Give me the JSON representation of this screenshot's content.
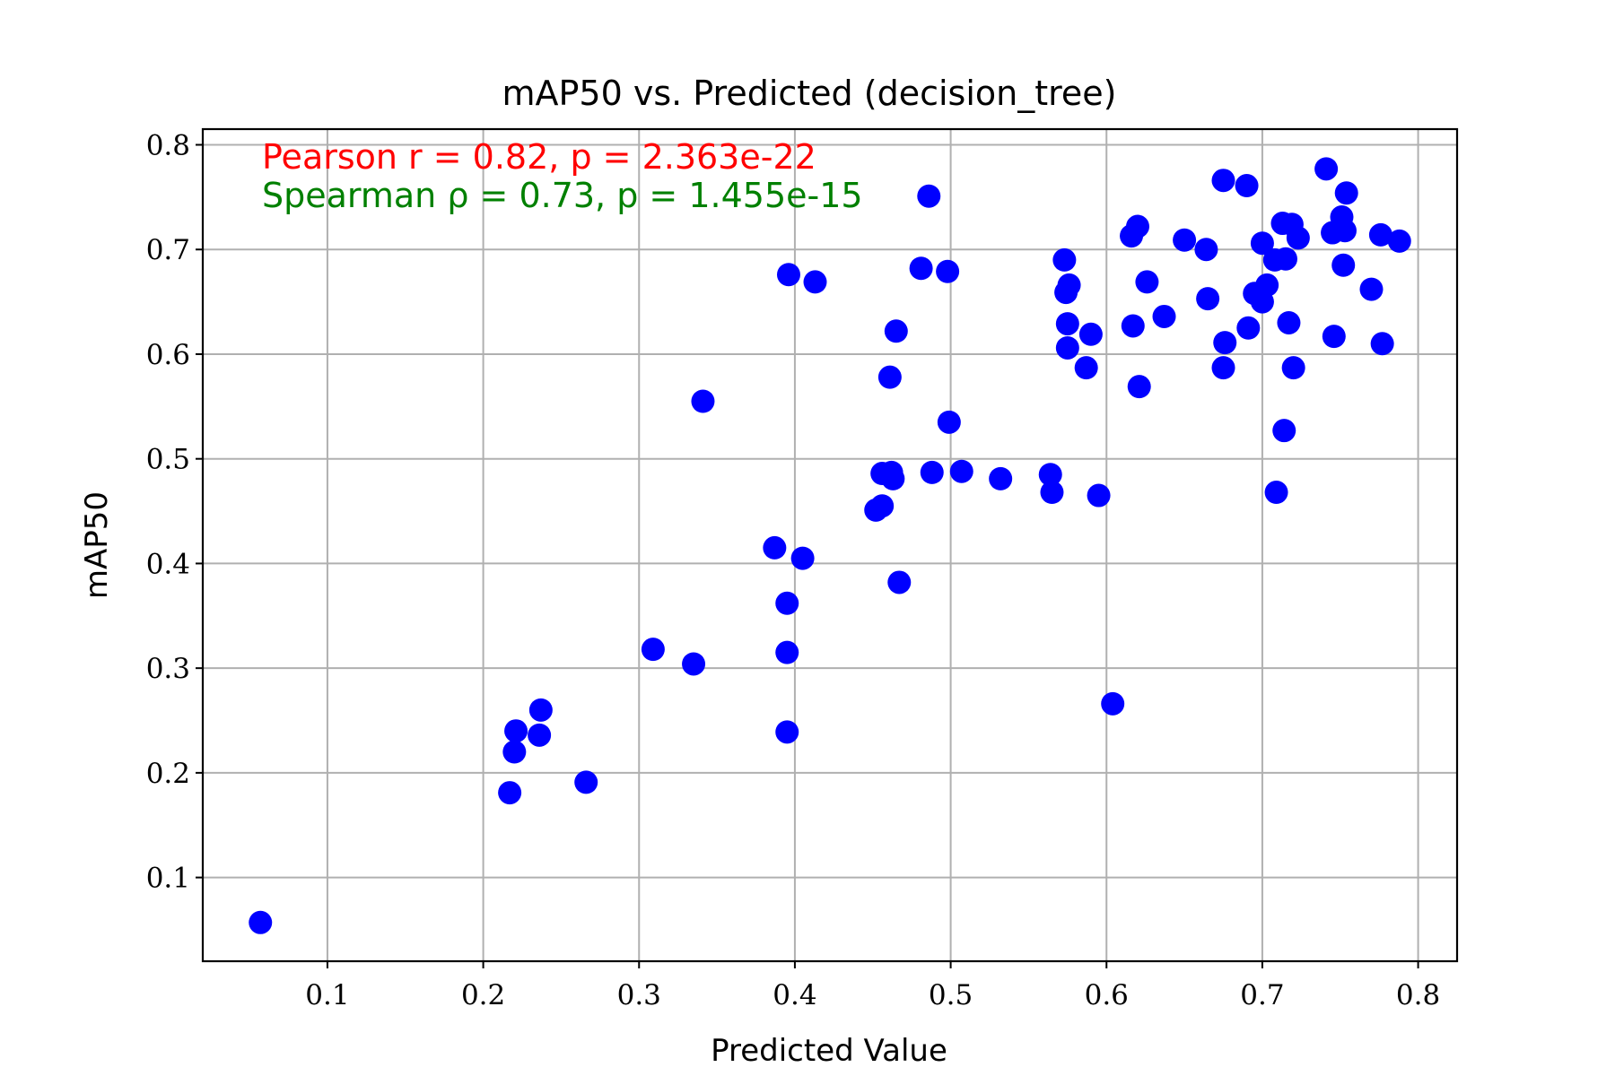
{
  "chart_data": {
    "type": "scatter",
    "title": "mAP50 vs. Predicted (decision_tree)",
    "xlabel": "Predicted Value",
    "ylabel": "mAP50",
    "xlim": [
      0.02,
      0.825
    ],
    "ylim": [
      0.02,
      0.815
    ],
    "xticks": [
      0.1,
      0.2,
      0.3,
      0.4,
      0.5,
      0.6,
      0.7,
      0.8
    ],
    "yticks": [
      0.1,
      0.2,
      0.3,
      0.4,
      0.5,
      0.6,
      0.7,
      0.8
    ],
    "xtick_labels": [
      "0.1",
      "0.2",
      "0.3",
      "0.4",
      "0.5",
      "0.6",
      "0.7",
      "0.8"
    ],
    "ytick_labels": [
      "0.1",
      "0.2",
      "0.3",
      "0.4",
      "0.5",
      "0.6",
      "0.7",
      "0.8"
    ],
    "grid": true,
    "marker_color": "#0000ff",
    "annotations": [
      {
        "text": "Pearson r = 0.82, p = 2.363e-22",
        "color": "#ff0000"
      },
      {
        "text": "Spearman ρ = 0.73, p = 1.455e-15",
        "color": "#008000"
      }
    ],
    "points": [
      [
        0.057,
        0.057
      ],
      [
        0.217,
        0.181
      ],
      [
        0.22,
        0.22
      ],
      [
        0.221,
        0.24
      ],
      [
        0.236,
        0.236
      ],
      [
        0.237,
        0.26
      ],
      [
        0.266,
        0.191
      ],
      [
        0.309,
        0.318
      ],
      [
        0.335,
        0.304
      ],
      [
        0.341,
        0.555
      ],
      [
        0.387,
        0.415
      ],
      [
        0.395,
        0.362
      ],
      [
        0.395,
        0.315
      ],
      [
        0.395,
        0.239
      ],
      [
        0.396,
        0.676
      ],
      [
        0.405,
        0.405
      ],
      [
        0.413,
        0.669
      ],
      [
        0.452,
        0.451
      ],
      [
        0.456,
        0.455
      ],
      [
        0.456,
        0.486
      ],
      [
        0.462,
        0.487
      ],
      [
        0.463,
        0.481
      ],
      [
        0.461,
        0.578
      ],
      [
        0.465,
        0.622
      ],
      [
        0.467,
        0.382
      ],
      [
        0.481,
        0.682
      ],
      [
        0.486,
        0.751
      ],
      [
        0.488,
        0.487
      ],
      [
        0.498,
        0.679
      ],
      [
        0.499,
        0.535
      ],
      [
        0.507,
        0.488
      ],
      [
        0.532,
        0.481
      ],
      [
        0.564,
        0.485
      ],
      [
        0.565,
        0.468
      ],
      [
        0.595,
        0.465
      ],
      [
        0.604,
        0.266
      ],
      [
        0.573,
        0.69
      ],
      [
        0.574,
        0.659
      ],
      [
        0.576,
        0.666
      ],
      [
        0.575,
        0.629
      ],
      [
        0.575,
        0.606
      ],
      [
        0.587,
        0.587
      ],
      [
        0.59,
        0.619
      ],
      [
        0.616,
        0.713
      ],
      [
        0.62,
        0.722
      ],
      [
        0.617,
        0.627
      ],
      [
        0.621,
        0.569
      ],
      [
        0.626,
        0.669
      ],
      [
        0.637,
        0.636
      ],
      [
        0.65,
        0.709
      ],
      [
        0.664,
        0.7
      ],
      [
        0.665,
        0.653
      ],
      [
        0.675,
        0.766
      ],
      [
        0.676,
        0.611
      ],
      [
        0.675,
        0.587
      ],
      [
        0.69,
        0.761
      ],
      [
        0.691,
        0.625
      ],
      [
        0.695,
        0.658
      ],
      [
        0.7,
        0.706
      ],
      [
        0.7,
        0.65
      ],
      [
        0.703,
        0.666
      ],
      [
        0.708,
        0.69
      ],
      [
        0.709,
        0.468
      ],
      [
        0.713,
        0.725
      ],
      [
        0.715,
        0.691
      ],
      [
        0.714,
        0.527
      ],
      [
        0.717,
        0.63
      ],
      [
        0.719,
        0.724
      ],
      [
        0.72,
        0.587
      ],
      [
        0.723,
        0.711
      ],
      [
        0.741,
        0.777
      ],
      [
        0.745,
        0.716
      ],
      [
        0.746,
        0.617
      ],
      [
        0.751,
        0.731
      ],
      [
        0.752,
        0.685
      ],
      [
        0.753,
        0.718
      ],
      [
        0.754,
        0.754
      ],
      [
        0.77,
        0.662
      ],
      [
        0.776,
        0.714
      ],
      [
        0.777,
        0.61
      ],
      [
        0.788,
        0.708
      ]
    ]
  }
}
